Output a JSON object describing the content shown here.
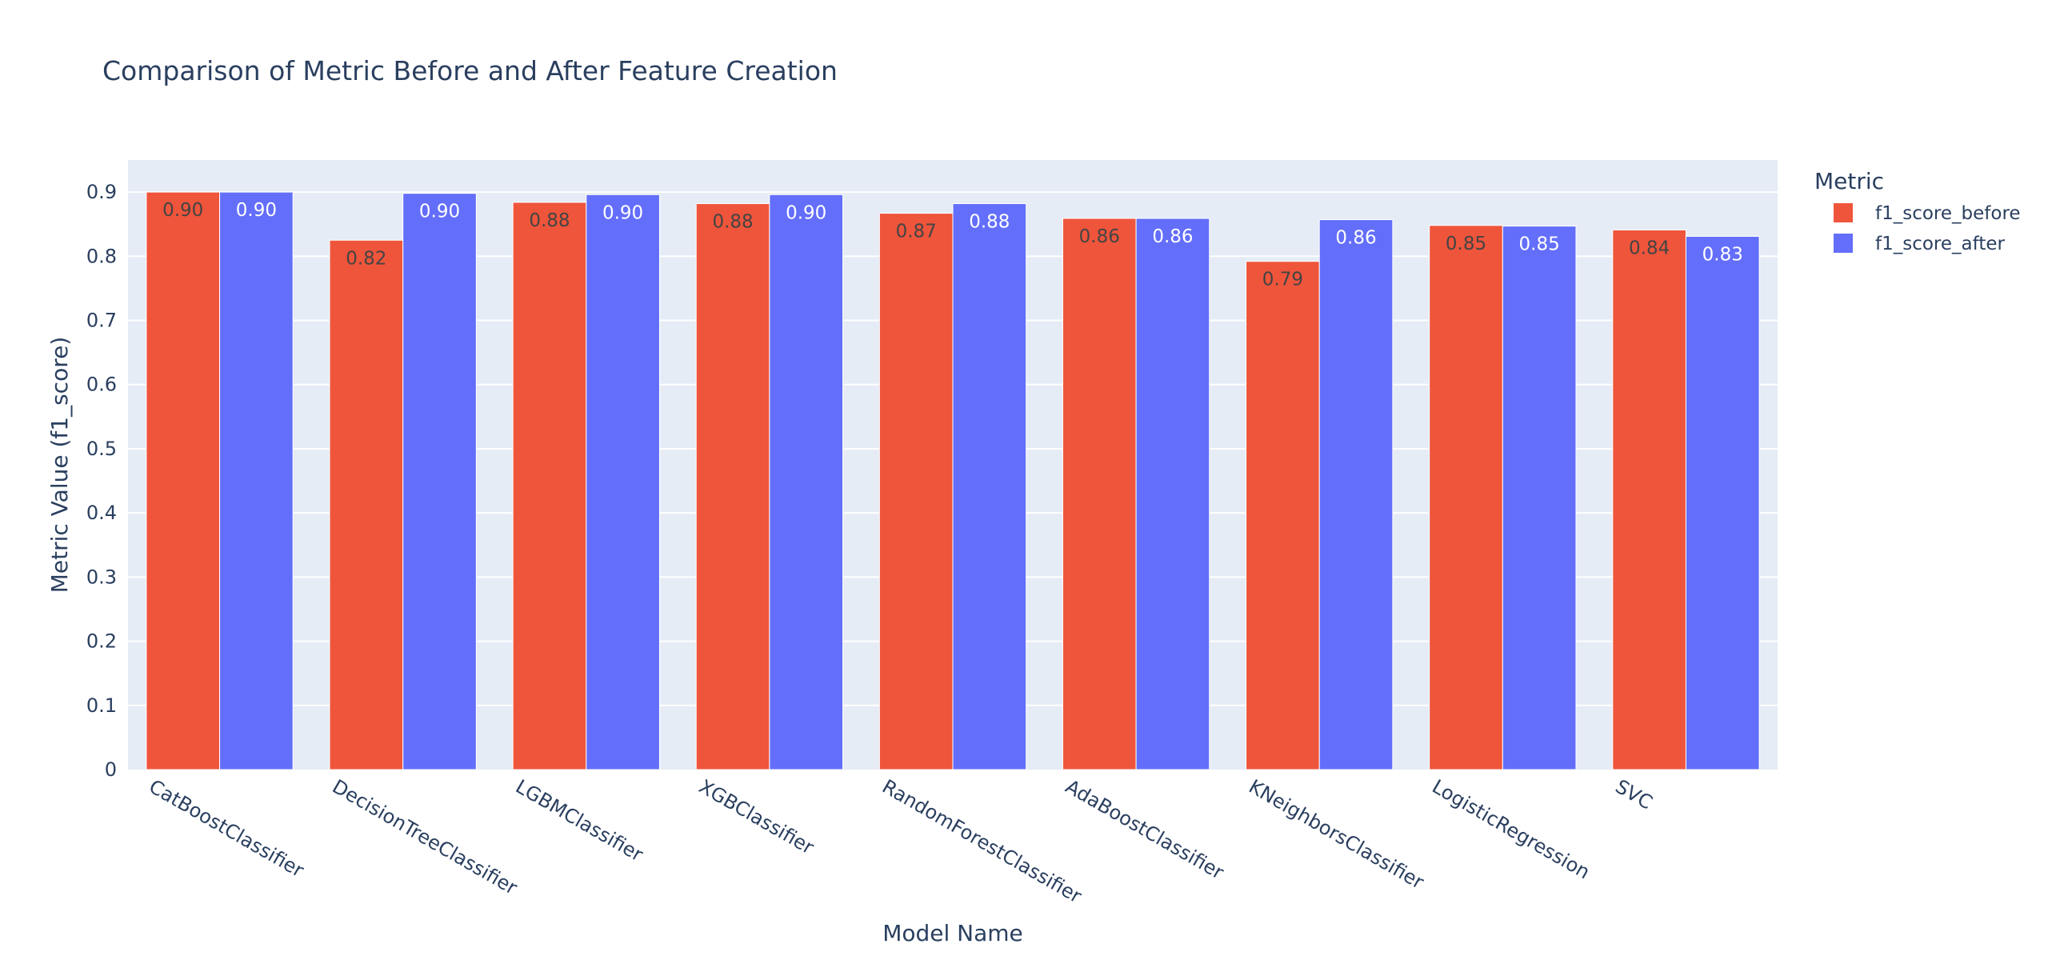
{
  "chart_data": {
    "type": "bar",
    "title": "Comparison of Metric Before and After Feature Creation",
    "xlabel": "Model Name",
    "ylabel": "Metric Value (f1_score)",
    "ylim": [
      0,
      0.95
    ],
    "yticks": [
      "0",
      "0.1",
      "0.2",
      "0.3",
      "0.4",
      "0.5",
      "0.6",
      "0.7",
      "0.8",
      "0.9"
    ],
    "grid": true,
    "legend_title": "Metric",
    "legend_position": "top-right",
    "categories": [
      "CatBoostClassifier",
      "DecisionTreeClassifier",
      "LGBMClassifier",
      "XGBClassifier",
      "RandomForestClassifier",
      "AdaBoostClassifier",
      "KNeighborsClassifier",
      "LogisticRegression",
      "SVC"
    ],
    "series": [
      {
        "name": "f1_score_before",
        "color": "#EF553B",
        "label_color": "#444444",
        "values": [
          0.9,
          0.825,
          0.884,
          0.882,
          0.867,
          0.859,
          0.792,
          0.848,
          0.841
        ],
        "labels": [
          "0.90",
          "0.82",
          "0.88",
          "0.88",
          "0.87",
          "0.86",
          "0.79",
          "0.85",
          "0.84"
        ]
      },
      {
        "name": "f1_score_after",
        "color": "#636EFA",
        "label_color": "#ffffff",
        "values": [
          0.9,
          0.898,
          0.896,
          0.896,
          0.882,
          0.859,
          0.857,
          0.847,
          0.831
        ],
        "labels": [
          "0.90",
          "0.90",
          "0.90",
          "0.90",
          "0.88",
          "0.86",
          "0.86",
          "0.85",
          "0.83"
        ]
      }
    ],
    "colors": {
      "plot_background": "#E5ECF6",
      "gridline": "#ffffff",
      "text": "#2a3f5f"
    }
  }
}
